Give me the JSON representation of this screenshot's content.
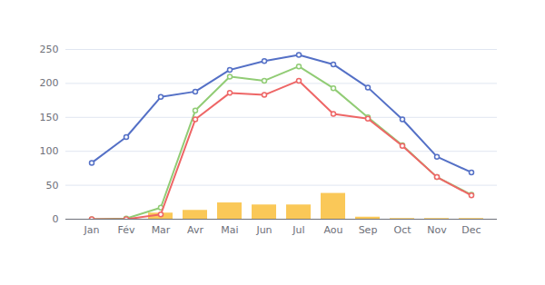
{
  "chart_data": {
    "type": "line",
    "categories": [
      "Jan",
      "Fév",
      "Mar",
      "Avr",
      "Mai",
      "Jun",
      "Jul",
      "Aou",
      "Sep",
      "Oct",
      "Nov",
      "Dec"
    ],
    "series": [
      {
        "type": "bar",
        "color": "#fac858",
        "values": [
          0,
          0,
          9,
          13,
          24,
          21,
          21,
          38,
          3,
          1,
          1,
          1
        ]
      },
      {
        "type": "line",
        "color": "#5470c6",
        "marker": "circle",
        "values": [
          83,
          121,
          180,
          188,
          220,
          233,
          242,
          228,
          194,
          147,
          92,
          69
        ]
      },
      {
        "type": "line",
        "color": "#91cc75",
        "marker": "circle",
        "values": [
          0,
          1,
          17,
          160,
          210,
          204,
          225,
          193,
          150,
          109,
          62,
          36
        ]
      },
      {
        "type": "line",
        "color": "#ee6666",
        "marker": "circle",
        "values": [
          0,
          0,
          7,
          147,
          186,
          183,
          204,
          155,
          148,
          108,
          62,
          35
        ]
      }
    ],
    "ylim": [
      0,
      250
    ],
    "yticks": [
      0,
      50,
      100,
      150,
      200,
      250
    ],
    "grid": true
  }
}
